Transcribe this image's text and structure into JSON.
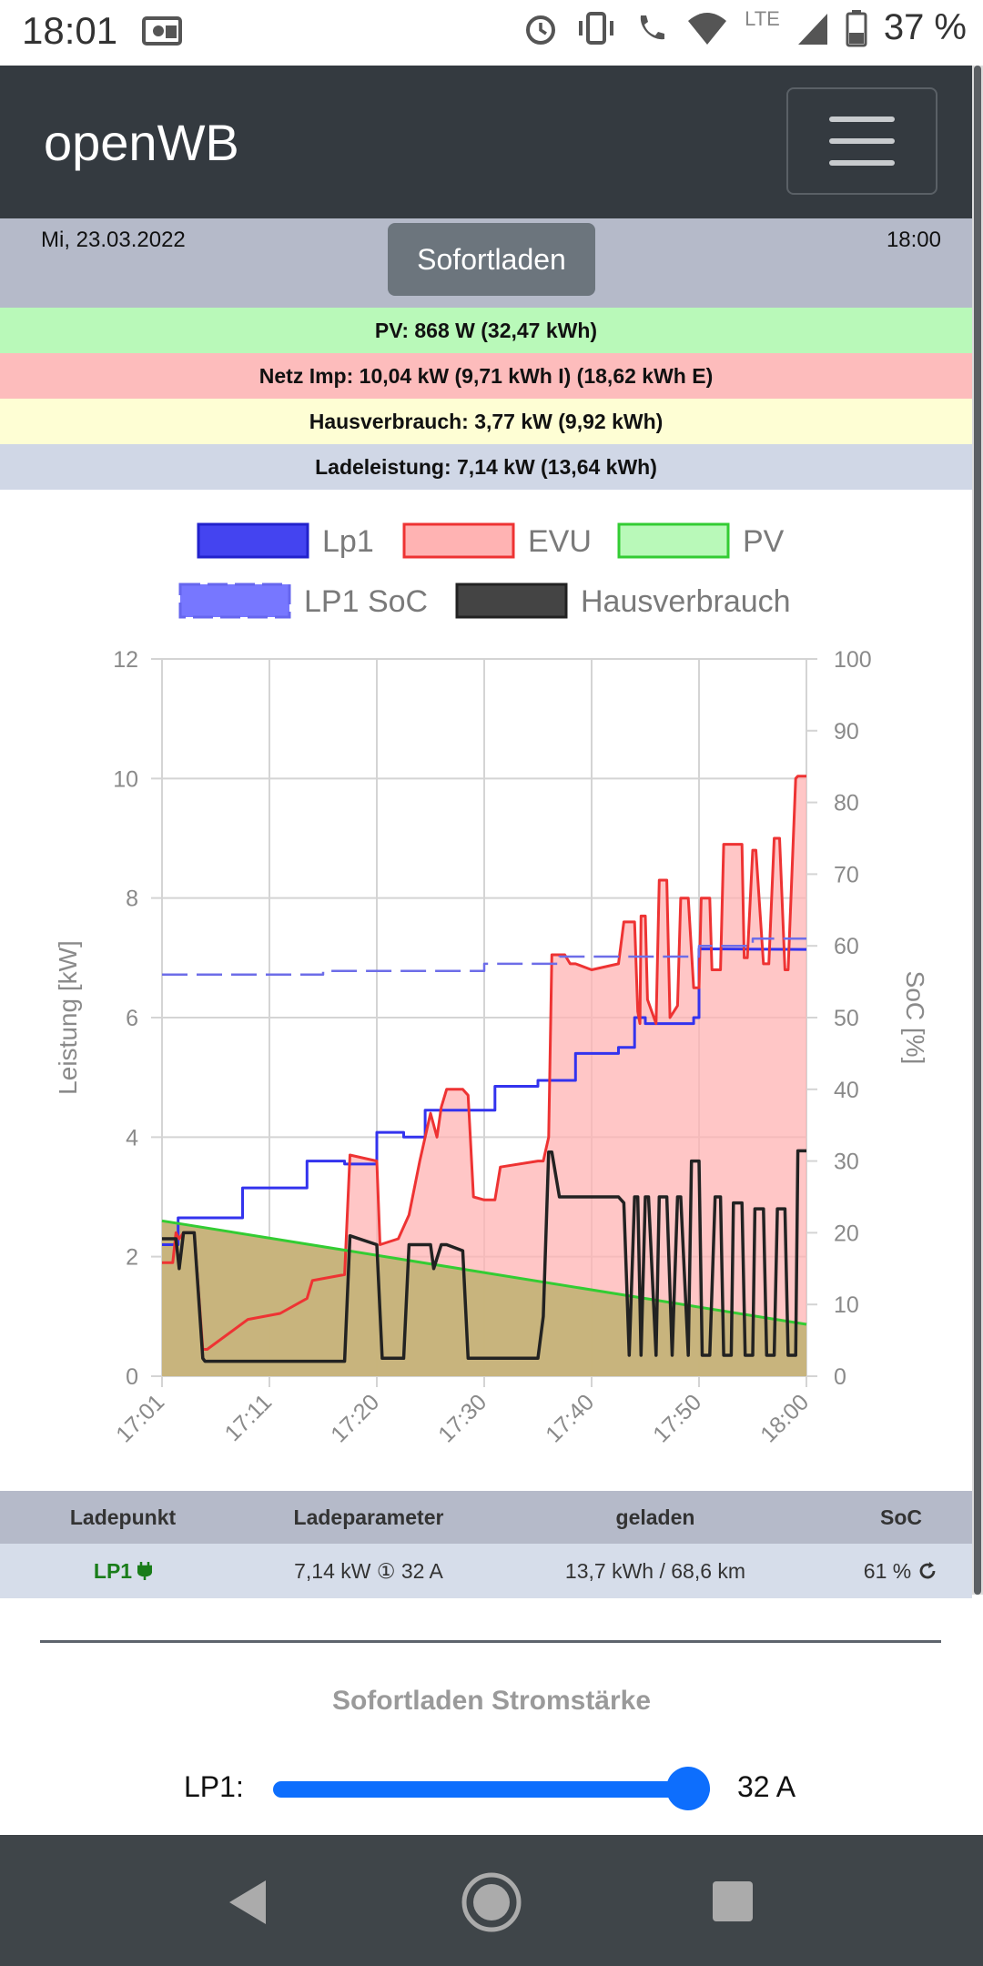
{
  "status_bar": {
    "time": "18:01",
    "network": "LTE",
    "battery": "37 %",
    "icons": [
      "cast-icon",
      "alarm-icon",
      "vibrate-icon",
      "wifi-call-icon",
      "wifi-icon",
      "signal-icon",
      "battery-icon"
    ]
  },
  "navbar": {
    "brand": "openWB",
    "menu_icon": "hamburger-icon"
  },
  "header": {
    "date": "Mi, 23.03.2022",
    "time": "18:00",
    "mode_button": "Sofortladen"
  },
  "info": {
    "pv": "PV: 868 W (32,47 kWh)",
    "evu": "Netz Imp: 10,04 kW (9,71 kWh I) (18,62 kWh E)",
    "house": "Hausverbrauch: 3,77 kW (9,92 kWh)",
    "charge": "Ladeleistung: 7,14 kW (13,64 kWh)"
  },
  "chart_data": {
    "type": "line",
    "ylabel": "Leistung [kW]",
    "y2label": "SoC [%]",
    "ylim": [
      0,
      12
    ],
    "y2lim": [
      0,
      100
    ],
    "yticks": [
      "0",
      "2",
      "4",
      "6",
      "8",
      "10",
      "12"
    ],
    "y2ticks": [
      "0",
      "10",
      "20",
      "30",
      "40",
      "50",
      "60",
      "70",
      "80",
      "90",
      "100"
    ],
    "xticks": [
      "17:01",
      "17:11",
      "17:20",
      "17:30",
      "17:40",
      "17:50",
      "18:00"
    ],
    "xlim": [
      0,
      60
    ],
    "grid": true,
    "legend_position": "top",
    "series": [
      {
        "name": "Lp1",
        "color": "#3333ee",
        "fill": "#6666ff",
        "style": "line",
        "x": [
          0,
          1.5,
          1.5,
          7.5,
          7.5,
          13.5,
          13.5,
          17,
          17,
          20,
          20,
          22.5,
          22.5,
          24.5,
          24.5,
          31,
          31,
          35,
          35,
          38.5,
          38.5,
          42.5,
          42.5,
          44,
          44,
          45,
          45,
          49.5,
          49.5,
          50,
          50,
          60
        ],
        "y": [
          2.2,
          2.2,
          2.65,
          2.65,
          3.15,
          3.15,
          3.6,
          3.6,
          3.55,
          3.55,
          4.08,
          4.08,
          4.0,
          4.0,
          4.45,
          4.45,
          4.85,
          4.85,
          4.95,
          4.95,
          5.4,
          5.4,
          5.5,
          5.5,
          6.0,
          6.0,
          5.9,
          5.9,
          6.0,
          6.0,
          7.15,
          7.14
        ]
      },
      {
        "name": "EVU",
        "color": "#ee3333",
        "fill": "#ffb3b3",
        "style": "area",
        "x": [
          0,
          1,
          1.3,
          1.6,
          2,
          3,
          3.8,
          4.2,
          8,
          11,
          13.5,
          14,
          17,
          17.5,
          20,
          20.3,
          22,
          23,
          24,
          25,
          25.6,
          26,
          26.5,
          28,
          28.5,
          29,
          30,
          31,
          31.5,
          35,
          35.5,
          36,
          36.3,
          37.5,
          38,
          38.5,
          40,
          42.5,
          43,
          44,
          44.3,
          44.5,
          44.6,
          45,
          45.2,
          46,
          46.3,
          47,
          47.3,
          48,
          48.3,
          49,
          49.5,
          50,
          50.2,
          51,
          51.2,
          52,
          52.3,
          54,
          54.2,
          54.5,
          55,
          55.3,
          56,
          56.5,
          57,
          57.5,
          58,
          58.3,
          59,
          59.2,
          59.5,
          60
        ],
        "y": [
          1.9,
          1.9,
          2.4,
          2.3,
          2.4,
          2.4,
          0.45,
          0.45,
          0.95,
          1.05,
          1.3,
          1.6,
          1.7,
          3.7,
          3.6,
          2.2,
          2.3,
          2.7,
          3.6,
          4.4,
          4.0,
          4.5,
          4.8,
          4.8,
          4.7,
          3.0,
          2.95,
          2.95,
          3.5,
          3.6,
          3.6,
          4.0,
          7.05,
          7.05,
          6.9,
          6.9,
          6.8,
          6.9,
          7.6,
          7.6,
          6.1,
          5.9,
          7.7,
          7.7,
          6.3,
          5.9,
          8.3,
          8.3,
          6.0,
          6.2,
          8.0,
          8.0,
          6.5,
          6.5,
          8.0,
          8.0,
          6.8,
          6.8,
          8.9,
          8.9,
          7.0,
          7.0,
          8.8,
          8.8,
          6.9,
          6.9,
          9.0,
          9.0,
          6.8,
          6.8,
          10.0,
          10.04,
          10.04,
          10.04
        ]
      },
      {
        "name": "PV",
        "color": "#33cc33",
        "fill": "#99ff99",
        "style": "area",
        "x": [
          0,
          60
        ],
        "y": [
          2.6,
          0.868
        ]
      },
      {
        "name": "LP1 SoC",
        "color": "#6666ee",
        "fill": "#7777ff",
        "style": "dashed",
        "axis": "y2",
        "x": [
          0,
          15,
          15,
          30,
          30,
          37,
          37,
          50,
          50,
          55,
          55,
          60
        ],
        "y": [
          56,
          56,
          56.5,
          56.5,
          57.5,
          57.5,
          58.5,
          58.5,
          60,
          60,
          61,
          61
        ]
      },
      {
        "name": "Hausverbrauch",
        "color": "#222222",
        "fill": "#444444",
        "style": "line",
        "x": [
          0,
          1.3,
          1.6,
          2,
          3,
          3.8,
          4,
          14,
          17,
          17.5,
          20,
          20.5,
          22.5,
          23,
          24,
          25,
          25.3,
          26,
          26.5,
          28,
          28.5,
          29,
          30,
          32,
          35,
          35.5,
          36,
          36.3,
          37,
          37.5,
          38,
          39.5,
          40,
          42.5,
          43,
          43.5,
          44,
          44.3,
          44.6,
          45,
          45.3,
          46,
          46.3,
          47,
          47.5,
          48,
          48.3,
          49,
          49.3,
          50,
          50.3,
          51,
          51.5,
          52,
          52.3,
          53,
          53.2,
          54,
          54.3,
          55,
          55.2,
          56,
          56.3,
          57,
          57.3,
          58,
          58.3,
          59,
          59.2,
          60
        ],
        "y": [
          2.3,
          2.3,
          1.8,
          2.4,
          2.4,
          0.3,
          0.25,
          0.25,
          0.25,
          2.35,
          2.2,
          0.3,
          0.3,
          2.2,
          2.2,
          2.2,
          1.8,
          2.2,
          2.2,
          2.1,
          0.3,
          0.3,
          0.3,
          0.3,
          0.3,
          1.0,
          3.75,
          3.75,
          3.0,
          3.0,
          3.0,
          3.0,
          3.0,
          3.0,
          2.9,
          0.35,
          3.0,
          3.0,
          0.35,
          3.0,
          3.0,
          0.35,
          3.0,
          3.0,
          0.35,
          3.0,
          3.0,
          0.35,
          3.6,
          3.6,
          0.35,
          0.35,
          3.0,
          3.0,
          0.35,
          0.35,
          2.9,
          2.9,
          0.35,
          0.35,
          2.8,
          2.8,
          0.35,
          0.35,
          2.8,
          2.8,
          0.35,
          0.35,
          3.77,
          3.77
        ]
      }
    ]
  },
  "table": {
    "headers": [
      "Ladepunkt",
      "Ladeparameter",
      "geladen",
      "SoC"
    ],
    "rows": [
      {
        "name": "LP1",
        "params": "7,14 kW ① 32 A",
        "charged": "13,7 kWh / 68,6 km",
        "soc": "61 %"
      }
    ]
  },
  "current_section": {
    "title": "Sofortladen Stromstärke",
    "lp_label": "LP1:",
    "value": "32 A",
    "slider_fraction": 1.0
  }
}
